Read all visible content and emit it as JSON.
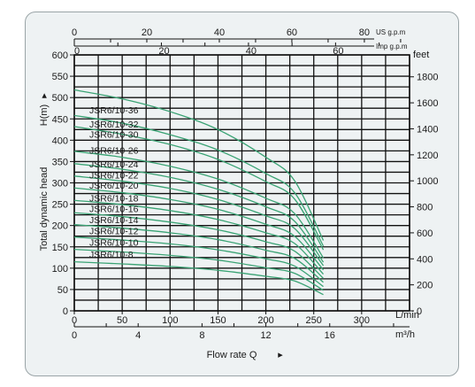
{
  "chart_data": {
    "type": "line",
    "xlabel": "Flow rate Q",
    "ylabel": "Total dynamic head",
    "ylabel_unit": "H(m)",
    "x_unit_lmin": "L/min",
    "x_unit_m3h": "m³/h",
    "x_unit_usgpm": "US g.p.m",
    "x_unit_impgpm": "Imp g.p.m",
    "y_unit_feet": "feet",
    "xlim": [
      0,
      350
    ],
    "ylim": [
      0,
      600
    ],
    "x_ticks_lmin": [
      "0",
      "50",
      "100",
      "150",
      "200",
      "250",
      "300"
    ],
    "x_ticks_m3h": [
      "0",
      "4",
      "8",
      "12",
      "16"
    ],
    "x_ticks_usgpm": [
      "0",
      "20",
      "40",
      "60",
      "80"
    ],
    "x_ticks_impgpm": [
      "0",
      "20",
      "40",
      "60"
    ],
    "y_ticks_m": [
      "0",
      "50",
      "100",
      "150",
      "200",
      "250",
      "300",
      "350",
      "400",
      "450",
      "500",
      "550",
      "600"
    ],
    "y_ticks_feet": [
      "0",
      "200",
      "400",
      "600",
      "800",
      "1000",
      "1200",
      "1400",
      "1600",
      "1800"
    ],
    "series": [
      {
        "name": "JSR6/10-36",
        "values": [
          [
            0,
            518
          ],
          [
            50,
            497
          ],
          [
            100,
            467
          ],
          [
            150,
            425
          ],
          [
            200,
            360
          ],
          [
            230,
            305
          ],
          [
            260,
            165
          ]
        ]
      },
      {
        "name": "JSR6/10-32",
        "values": [
          [
            0,
            458
          ],
          [
            50,
            440
          ],
          [
            100,
            413
          ],
          [
            150,
            377
          ],
          [
            200,
            322
          ],
          [
            230,
            277
          ],
          [
            260,
            152
          ]
        ]
      },
      {
        "name": "JSR6/10-30",
        "values": [
          [
            0,
            432
          ],
          [
            50,
            414
          ],
          [
            100,
            390
          ],
          [
            150,
            355
          ],
          [
            200,
            303
          ],
          [
            230,
            262
          ],
          [
            260,
            143
          ]
        ]
      },
      {
        "name": "JSR6/10-26",
        "values": [
          [
            0,
            374
          ],
          [
            50,
            360
          ],
          [
            100,
            339
          ],
          [
            150,
            309
          ],
          [
            200,
            264
          ],
          [
            230,
            228
          ],
          [
            260,
            124
          ]
        ]
      },
      {
        "name": "JSR6/10-24",
        "values": [
          [
            0,
            345
          ],
          [
            50,
            332
          ],
          [
            100,
            313
          ],
          [
            150,
            285
          ],
          [
            200,
            244
          ],
          [
            230,
            210
          ],
          [
            260,
            114
          ]
        ]
      },
      {
        "name": "JSR6/10-22",
        "values": [
          [
            0,
            316
          ],
          [
            50,
            304
          ],
          [
            100,
            287
          ],
          [
            150,
            261
          ],
          [
            200,
            223
          ],
          [
            230,
            193
          ],
          [
            260,
            106
          ]
        ]
      },
      {
        "name": "JSR6/10-20",
        "values": [
          [
            0,
            288
          ],
          [
            50,
            277
          ],
          [
            100,
            261
          ],
          [
            150,
            238
          ],
          [
            200,
            203
          ],
          [
            230,
            175
          ],
          [
            260,
            96
          ]
        ]
      },
      {
        "name": "JSR6/10-18",
        "values": [
          [
            0,
            259
          ],
          [
            50,
            249
          ],
          [
            100,
            235
          ],
          [
            150,
            214
          ],
          [
            200,
            183
          ],
          [
            230,
            158
          ],
          [
            260,
            86
          ]
        ]
      },
      {
        "name": "JSR6/10-16",
        "values": [
          [
            0,
            230
          ],
          [
            50,
            221
          ],
          [
            100,
            208
          ],
          [
            150,
            190
          ],
          [
            200,
            162
          ],
          [
            230,
            140
          ],
          [
            260,
            76
          ]
        ]
      },
      {
        "name": "JSR6/10-14",
        "values": [
          [
            0,
            202
          ],
          [
            50,
            194
          ],
          [
            100,
            183
          ],
          [
            150,
            167
          ],
          [
            200,
            142
          ],
          [
            230,
            123
          ],
          [
            260,
            67
          ]
        ]
      },
      {
        "name": "JSR6/10-12",
        "values": [
          [
            0,
            173
          ],
          [
            50,
            166
          ],
          [
            100,
            157
          ],
          [
            150,
            143
          ],
          [
            200,
            122
          ],
          [
            230,
            105
          ],
          [
            260,
            57
          ]
        ]
      },
      {
        "name": "JSR6/10-10",
        "values": [
          [
            0,
            144
          ],
          [
            50,
            138
          ],
          [
            100,
            130
          ],
          [
            150,
            119
          ],
          [
            200,
            101
          ],
          [
            230,
            88
          ],
          [
            260,
            48
          ]
        ]
      },
      {
        "name": "JSR6/10-8",
        "values": [
          [
            0,
            115
          ],
          [
            50,
            110
          ],
          [
            100,
            104
          ],
          [
            150,
            95
          ],
          [
            200,
            81
          ],
          [
            230,
            70
          ],
          [
            260,
            38
          ]
        ]
      }
    ],
    "label_positions_m": [
      463,
      430,
      406,
      368,
      336,
      310,
      286,
      256,
      232,
      206,
      180,
      153,
      125
    ],
    "grid": true,
    "colors": {
      "curve": "#3aa374",
      "grid": "#111111",
      "axis": "#111111"
    }
  }
}
